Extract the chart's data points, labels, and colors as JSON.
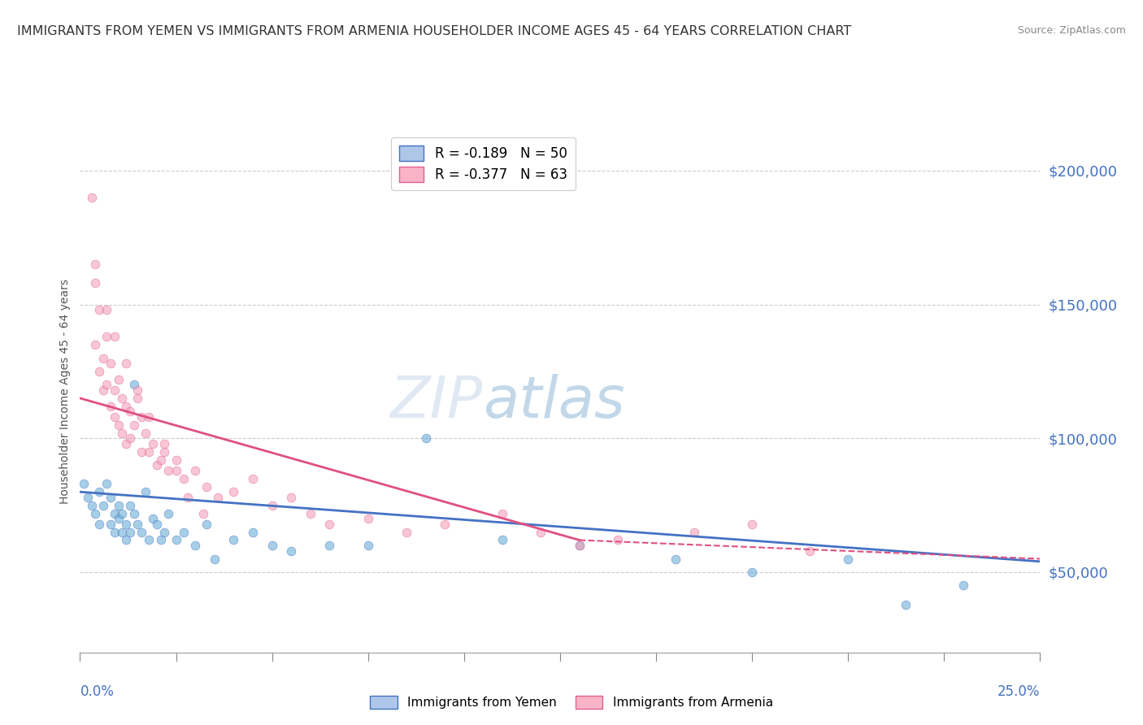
{
  "title": "IMMIGRANTS FROM YEMEN VS IMMIGRANTS FROM ARMENIA HOUSEHOLDER INCOME AGES 45 - 64 YEARS CORRELATION CHART",
  "source": "Source: ZipAtlas.com",
  "ylabel": "Householder Income Ages 45 - 64 years",
  "xlim": [
    0.0,
    0.25
  ],
  "ylim": [
    20000,
    215000
  ],
  "yticks": [
    50000,
    100000,
    150000,
    200000
  ],
  "ytick_labels": [
    "$50,000",
    "$100,000",
    "$150,000",
    "$200,000"
  ],
  "background_color": "#ffffff",
  "grid_color": "#cccccc",
  "ylabel_color": "#555555",
  "ytick_color": "#4472c4",
  "xtick_color": "#4472c4",
  "title_color": "#333333",
  "title_fontsize": 11.5,
  "ylabel_fontsize": 10,
  "watermark_text": "ZIPatlas",
  "watermark_color": "#c8d8f0",
  "scatter_yemen": {
    "x": [
      0.001,
      0.002,
      0.003,
      0.004,
      0.005,
      0.005,
      0.006,
      0.007,
      0.008,
      0.008,
      0.009,
      0.009,
      0.01,
      0.01,
      0.011,
      0.011,
      0.012,
      0.012,
      0.013,
      0.013,
      0.014,
      0.014,
      0.015,
      0.016,
      0.017,
      0.018,
      0.019,
      0.02,
      0.021,
      0.022,
      0.023,
      0.025,
      0.027,
      0.03,
      0.033,
      0.035,
      0.04,
      0.045,
      0.05,
      0.055,
      0.065,
      0.075,
      0.09,
      0.11,
      0.13,
      0.155,
      0.175,
      0.2,
      0.215,
      0.23
    ],
    "y": [
      83000,
      78000,
      75000,
      72000,
      80000,
      68000,
      75000,
      83000,
      78000,
      68000,
      72000,
      65000,
      75000,
      70000,
      72000,
      65000,
      68000,
      62000,
      65000,
      75000,
      120000,
      72000,
      68000,
      65000,
      80000,
      62000,
      70000,
      68000,
      62000,
      65000,
      72000,
      62000,
      65000,
      60000,
      68000,
      55000,
      62000,
      65000,
      60000,
      58000,
      60000,
      60000,
      100000,
      62000,
      60000,
      55000,
      50000,
      55000,
      38000,
      45000
    ],
    "color": "#6baed6",
    "edge_color": "#4472c4",
    "alpha": 0.6,
    "size": 60
  },
  "scatter_armenia": {
    "x": [
      0.003,
      0.004,
      0.004,
      0.005,
      0.005,
      0.006,
      0.006,
      0.007,
      0.007,
      0.008,
      0.008,
      0.009,
      0.009,
      0.01,
      0.01,
      0.011,
      0.011,
      0.012,
      0.012,
      0.013,
      0.013,
      0.014,
      0.015,
      0.016,
      0.016,
      0.017,
      0.018,
      0.019,
      0.02,
      0.021,
      0.022,
      0.023,
      0.025,
      0.027,
      0.03,
      0.033,
      0.036,
      0.04,
      0.045,
      0.05,
      0.055,
      0.06,
      0.065,
      0.075,
      0.085,
      0.095,
      0.11,
      0.12,
      0.13,
      0.14,
      0.16,
      0.175,
      0.19,
      0.004,
      0.007,
      0.009,
      0.012,
      0.015,
      0.018,
      0.022,
      0.025,
      0.028,
      0.032
    ],
    "y": [
      190000,
      165000,
      135000,
      148000,
      125000,
      130000,
      118000,
      138000,
      120000,
      128000,
      112000,
      118000,
      108000,
      122000,
      105000,
      115000,
      102000,
      112000,
      98000,
      110000,
      100000,
      105000,
      115000,
      95000,
      108000,
      102000,
      95000,
      98000,
      90000,
      92000,
      95000,
      88000,
      92000,
      85000,
      88000,
      82000,
      78000,
      80000,
      85000,
      75000,
      78000,
      72000,
      68000,
      70000,
      65000,
      68000,
      72000,
      65000,
      60000,
      62000,
      65000,
      68000,
      58000,
      158000,
      148000,
      138000,
      128000,
      118000,
      108000,
      98000,
      88000,
      78000,
      72000
    ],
    "color": "#f4a0b8",
    "edge_color": "#e06090",
    "alpha": 0.6,
    "size": 60
  },
  "trend_yemen": {
    "x": [
      0.0,
      0.25
    ],
    "y": [
      80000,
      54000
    ],
    "color": "#4472c4",
    "linewidth": 2.0,
    "linestyle": "solid"
  },
  "trend_armenia_solid": {
    "x": [
      0.0,
      0.13
    ],
    "y": [
      115000,
      62000
    ],
    "color": "#e05080",
    "linewidth": 2.0,
    "linestyle": "solid"
  },
  "trend_armenia_dashed": {
    "x": [
      0.13,
      0.25
    ],
    "y": [
      62000,
      55000
    ],
    "color": "#e05080",
    "linewidth": 1.5,
    "linestyle": "dashed"
  },
  "legend_top": {
    "items": [
      {
        "label": "R = -0.189   N = 50",
        "facecolor": "#aec6e8",
        "edgecolor": "#4472c4"
      },
      {
        "label": "R = -0.377   N = 63",
        "facecolor": "#f9b4c8",
        "edgecolor": "#e06090"
      }
    ],
    "fontsize": 12
  },
  "legend_bottom": {
    "items": [
      {
        "label": "Immigrants from Yemen",
        "facecolor": "#aec6e8",
        "edgecolor": "#4472c4"
      },
      {
        "label": "Immigrants from Armenia",
        "facecolor": "#f9b4c8",
        "edgecolor": "#e06090"
      }
    ],
    "fontsize": 11
  }
}
